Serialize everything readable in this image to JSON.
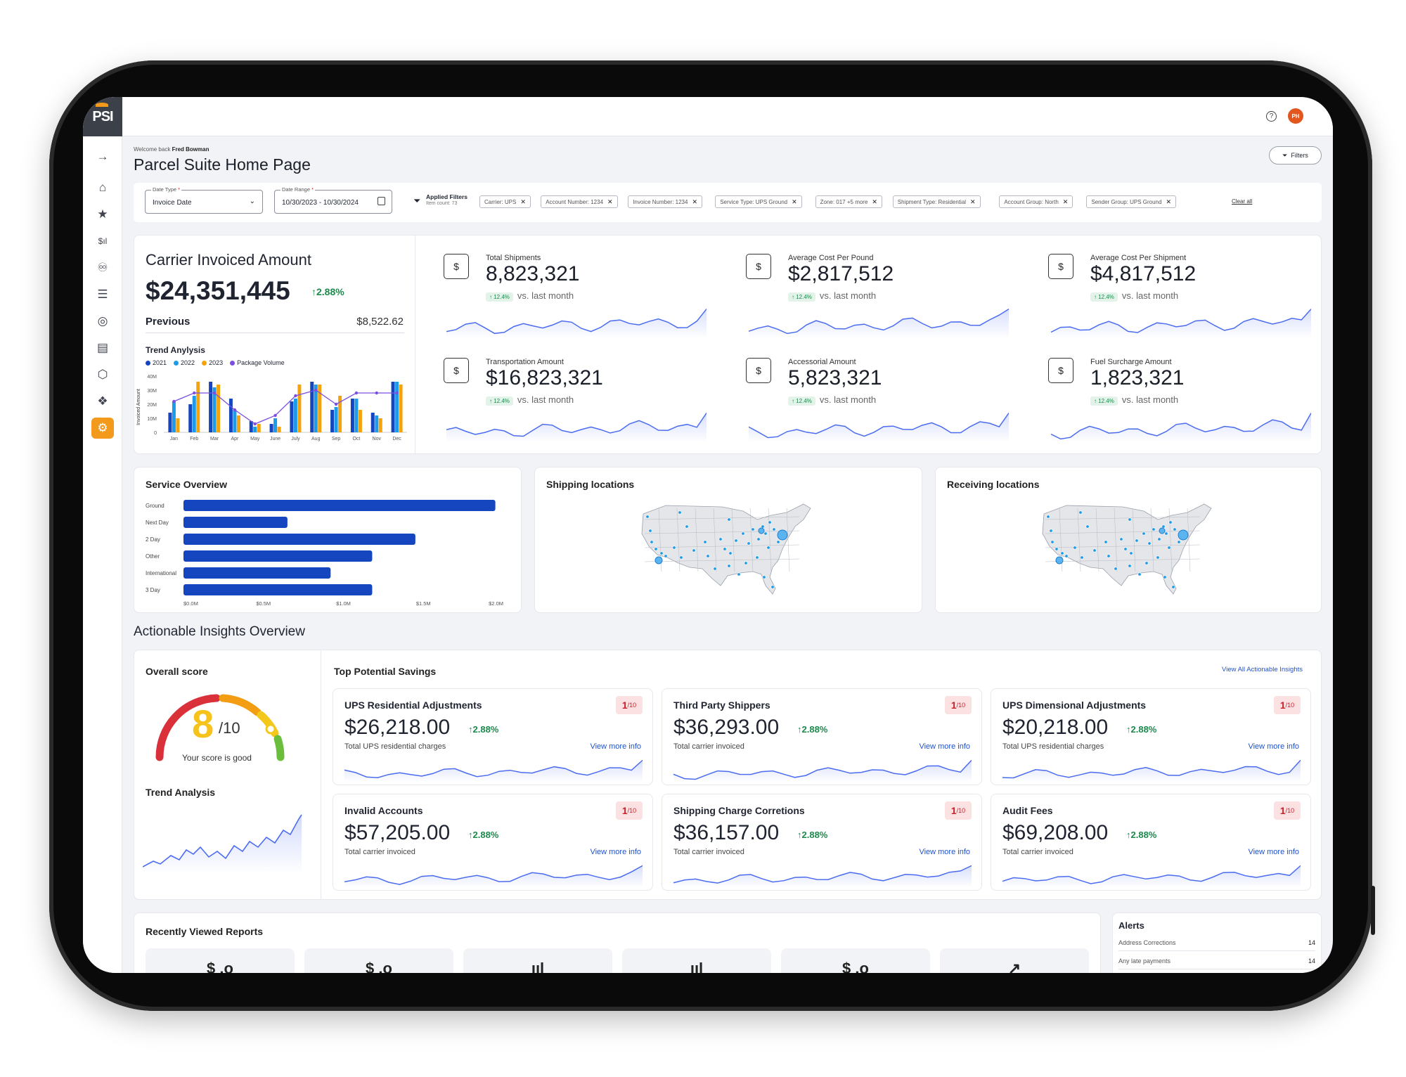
{
  "app": {
    "logo": "PSI",
    "user_initials": "PH"
  },
  "header": {
    "welcome_prefix": "Welcome back",
    "user_name": "Fred Bowman",
    "title": "Parcel Suite Home Page",
    "filters_label": "Filters"
  },
  "filterbar": {
    "date_type_label": "Date Type",
    "date_type_value": "Invoice Date",
    "date_range_label": "Date Range",
    "date_range_value": "10/30/2023 - 10/30/2024",
    "applied_title": "Applied Filters",
    "applied_count": "Item count: 73",
    "chips": [
      "Carrier: UPS",
      "Account Number: 1234",
      "Invoice Number: 1234",
      "Service Type: UPS Ground",
      "Zone: 017 +5 more",
      "Shipment Type: Residential",
      "Account Group: North",
      "Sender Group: UPS Ground"
    ],
    "clear_all": "Clear all"
  },
  "carrier": {
    "title": "Carrier Invoiced Amount",
    "value": "$24,351,445",
    "change": "2.88%",
    "previous_label": "Previous",
    "previous_value": "$8,522.62",
    "trend_title": "Trend Anylysis",
    "legend": [
      "2021",
      "2022",
      "2023",
      "Package Volume"
    ],
    "y_label": "Invoiced Amount",
    "y_ticks": [
      "40M",
      "30M",
      "20M",
      "10M",
      "0"
    ],
    "months": [
      "Jan",
      "Feb",
      "Mar",
      "Apr",
      "May",
      "June",
      "July",
      "Aug",
      "Sep",
      "Oct",
      "Nov",
      "Dec"
    ]
  },
  "kpis": [
    {
      "title": "Total Shipments",
      "value": "8,823,321",
      "pill": "12.4%",
      "desc": "vs. last month",
      "icon": "package-icon"
    },
    {
      "title": "Average Cost Per Pound",
      "value": "$2,817,512",
      "pill": "12.4%",
      "desc": "vs. last month",
      "icon": "weight-dollar-icon"
    },
    {
      "title": "Average Cost Per Shipment",
      "value": "$4,817,512",
      "pill": "12.4%",
      "desc": "vs. last month",
      "icon": "box-dollar-icon"
    },
    {
      "title": "Transportation Amount",
      "value": "$16,823,321",
      "pill": "12.4%",
      "desc": "vs. last month",
      "icon": "truck-dollar-icon"
    },
    {
      "title": "Accessorial Amount",
      "value": "5,823,321",
      "pill": "12.4%",
      "desc": "vs. last month",
      "icon": "magnifier-dollar-icon"
    },
    {
      "title": "Fuel Surcharge Amount",
      "value": "1,823,321",
      "pill": "12.4%",
      "desc": "vs. last month",
      "icon": "fuel-pump-icon"
    }
  ],
  "service": {
    "title": "Service Overview",
    "x_ticks": [
      "$0.0M",
      "$0.5M",
      "$1.0M",
      "$1.5M",
      "$2.0M"
    ]
  },
  "chart_data": {
    "type": "bar",
    "orientation": "horizontal",
    "title": "Service Overview",
    "categories": [
      "Ground",
      "Next Day",
      "2 Day",
      "Other",
      "International",
      "3 Day"
    ],
    "values": [
      1.95,
      0.65,
      1.45,
      1.18,
      0.92,
      1.18
    ],
    "xlim": [
      0,
      2.0
    ],
    "color": "#1546c0"
  },
  "maps": {
    "shipping_title": "Shipping locations",
    "receiving_title": "Receiving locations"
  },
  "insights": {
    "section_title": "Actionable Insights Overview",
    "overall_title": "Overall score",
    "score": "8",
    "score_max": "/10",
    "score_caption": "Your score is good",
    "trend_title": "Trend Analysis",
    "top_title": "Top Potential Savings",
    "view_all": "View All Actionable Insights",
    "cards": [
      {
        "title": "UPS Residential Adjustments",
        "value": "$26,218.00",
        "change": "2.88%",
        "sub": "Total UPS residential charges",
        "link": "View more info",
        "badge": "1",
        "badge_max": "/10"
      },
      {
        "title": "Third Party Shippers",
        "value": "$36,293.00",
        "change": "2.88%",
        "sub": "Total carrier invoiced",
        "link": "View more info",
        "badge": "1",
        "badge_max": "/10"
      },
      {
        "title": "UPS Dimensional Adjustments",
        "value": "$20,218.00",
        "change": "2.88%",
        "sub": "Total UPS residential charges",
        "link": "View more info",
        "badge": "1",
        "badge_max": "/10"
      },
      {
        "title": "Invalid Accounts",
        "value": "$57,205.00",
        "change": "2.88%",
        "sub": "Total carrier invoiced",
        "link": "View more info",
        "badge": "1",
        "badge_max": "/10"
      },
      {
        "title": "Shipping Charge Corretions",
        "value": "$36,157.00",
        "change": "2.88%",
        "sub": "Total carrier invoiced",
        "link": "View more info",
        "badge": "1",
        "badge_max": "/10"
      },
      {
        "title": "Audit Fees",
        "value": "$69,208.00",
        "change": "2.88%",
        "sub": "Total carrier invoiced",
        "link": "View more info",
        "badge": "1",
        "badge_max": "/10"
      }
    ]
  },
  "reports": {
    "title": "Recently Viewed Reports",
    "icons": [
      "$ .o",
      "$ .o",
      "ııl",
      "ııl",
      "$ .o",
      "↗"
    ]
  },
  "alerts": {
    "title": "Alerts",
    "rows": [
      {
        "label": "Address Corrections",
        "count": "14"
      },
      {
        "label": "Any late payments",
        "count": "14"
      }
    ]
  }
}
